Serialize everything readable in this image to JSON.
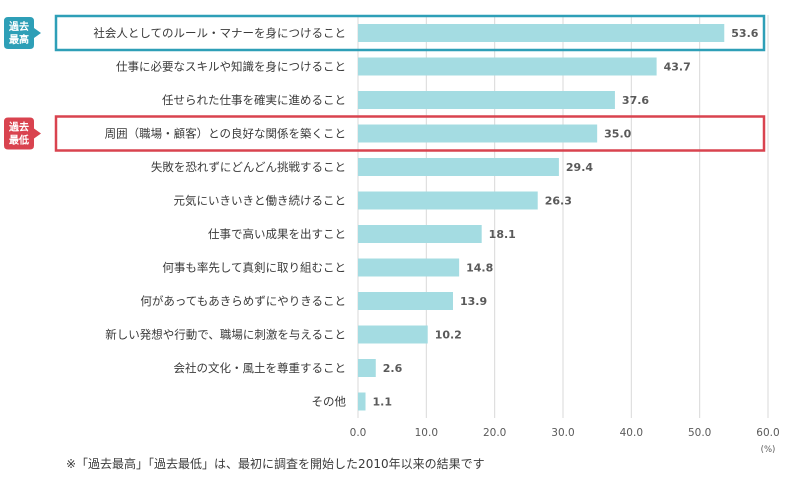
{
  "chart_data": {
    "type": "bar",
    "orientation": "horizontal",
    "categories": [
      "社会人としてのルール・マナーを身につけること",
      "仕事に必要なスキルや知識を身につけること",
      "任せられた仕事を確実に進めること",
      "周囲（職場・顧客）との良好な関係を築くこと",
      "失敗を恐れずにどんどん挑戦すること",
      "元気にいきいきと働き続けること",
      "仕事で高い成果を出すこと",
      "何事も率先して真剣に取り組むこと",
      "何があってもあきらめずにやりきること",
      "新しい発想や行動で、職場に刺激を与えること",
      "会社の文化・風土を尊重すること",
      "その他"
    ],
    "values": [
      53.6,
      43.7,
      37.6,
      35.0,
      29.4,
      26.3,
      18.1,
      14.8,
      13.9,
      10.2,
      2.6,
      1.1
    ],
    "value_labels": [
      "53.6",
      "43.7",
      "37.6",
      "35.0",
      "29.4",
      "26.3",
      "18.1",
      "14.8",
      "13.9",
      "10.2",
      "2.6",
      "1.1"
    ],
    "xlim": [
      0,
      60
    ],
    "ticks": [
      0,
      10,
      20,
      30,
      40,
      50,
      60
    ],
    "tick_labels": [
      "0.0",
      "10.0",
      "20.0",
      "30.0",
      "40.0",
      "50.0",
      "60.0"
    ],
    "unit": "(%)",
    "grid": true,
    "colors": {
      "bar": "#a4dce2",
      "grid": "#d9d9d9",
      "highest": "#2e9fb7",
      "lowest": "#d9434f"
    },
    "highlights": [
      {
        "index": 0,
        "label_lines": [
          "過去",
          "最高"
        ],
        "color": "#2e9fb7"
      },
      {
        "index": 3,
        "label_lines": [
          "過去",
          "最低"
        ],
        "color": "#d9434f"
      }
    ]
  },
  "footnote": "※「過去最高」「過去最低」は、最初に調査を開始した2010年以来の結果です"
}
